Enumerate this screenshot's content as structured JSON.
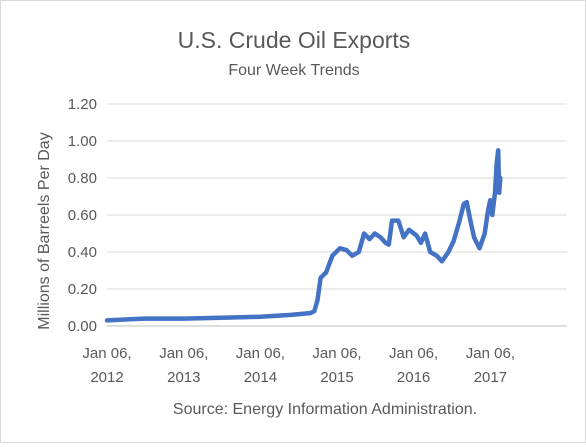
{
  "chart_data": {
    "type": "line",
    "title": "U.S. Crude Oil Exports",
    "subtitle": "Four Week Trends",
    "xlabel": "",
    "ylabel": "Millions of Barreels Per Day",
    "ylim": [
      0,
      1.2
    ],
    "yticks": [
      "0.00",
      "0.20",
      "0.40",
      "0.60",
      "0.80",
      "1.00",
      "1.20"
    ],
    "xlim": [
      "2012-01-06",
      "2018-01-06"
    ],
    "xticks": [
      {
        "date": "2012-01-06",
        "line1": "Jan 06,",
        "line2": "2012"
      },
      {
        "date": "2013-01-06",
        "line1": "Jan 06,",
        "line2": "2013"
      },
      {
        "date": "2014-01-06",
        "line1": "Jan 06,",
        "line2": "2014"
      },
      {
        "date": "2015-01-06",
        "line1": "Jan 06,",
        "line2": "2015"
      },
      {
        "date": "2016-01-06",
        "line1": "Jan 06,",
        "line2": "2016"
      },
      {
        "date": "2017-01-06",
        "line1": "Jan 06,",
        "line2": "2017"
      }
    ],
    "grid": true,
    "legend": "none",
    "line_color": "#4472c4",
    "series": [
      {
        "points": [
          [
            "2012-01-06",
            0.03
          ],
          [
            "2012-07-01",
            0.04
          ],
          [
            "2013-01-06",
            0.04
          ],
          [
            "2013-07-01",
            0.045
          ],
          [
            "2014-01-06",
            0.05
          ],
          [
            "2014-06-01",
            0.06
          ],
          [
            "2014-09-01",
            0.07
          ],
          [
            "2014-09-20",
            0.08
          ],
          [
            "2014-10-05",
            0.14
          ],
          [
            "2014-10-20",
            0.26
          ],
          [
            "2014-11-15",
            0.29
          ],
          [
            "2014-12-15",
            0.38
          ],
          [
            "2015-01-20",
            0.42
          ],
          [
            "2015-02-20",
            0.41
          ],
          [
            "2015-03-20",
            0.38
          ],
          [
            "2015-04-20",
            0.4
          ],
          [
            "2015-05-15",
            0.5
          ],
          [
            "2015-06-10",
            0.47
          ],
          [
            "2015-07-05",
            0.5
          ],
          [
            "2015-08-01",
            0.48
          ],
          [
            "2015-08-25",
            0.45
          ],
          [
            "2015-09-10",
            0.44
          ],
          [
            "2015-09-25",
            0.57
          ],
          [
            "2015-10-25",
            0.57
          ],
          [
            "2015-11-20",
            0.48
          ],
          [
            "2015-12-15",
            0.52
          ],
          [
            "2016-01-20",
            0.49
          ],
          [
            "2016-02-10",
            0.45
          ],
          [
            "2016-03-01",
            0.5
          ],
          [
            "2016-03-25",
            0.4
          ],
          [
            "2016-04-25",
            0.38
          ],
          [
            "2016-05-20",
            0.35
          ],
          [
            "2016-06-20",
            0.4
          ],
          [
            "2016-07-15",
            0.46
          ],
          [
            "2016-08-10",
            0.56
          ],
          [
            "2016-09-01",
            0.66
          ],
          [
            "2016-09-15",
            0.67
          ],
          [
            "2016-10-01",
            0.58
          ],
          [
            "2016-10-20",
            0.48
          ],
          [
            "2016-11-15",
            0.42
          ],
          [
            "2016-12-10",
            0.5
          ],
          [
            "2016-12-25",
            0.62
          ],
          [
            "2017-01-05",
            0.68
          ],
          [
            "2017-01-15",
            0.6
          ],
          [
            "2017-01-28",
            0.72
          ],
          [
            "2017-02-05",
            0.88
          ],
          [
            "2017-02-12",
            0.95
          ],
          [
            "2017-02-17",
            0.72
          ],
          [
            "2017-02-22",
            0.8
          ]
        ]
      }
    ],
    "source_note": "Source: Energy Information Administration."
  }
}
